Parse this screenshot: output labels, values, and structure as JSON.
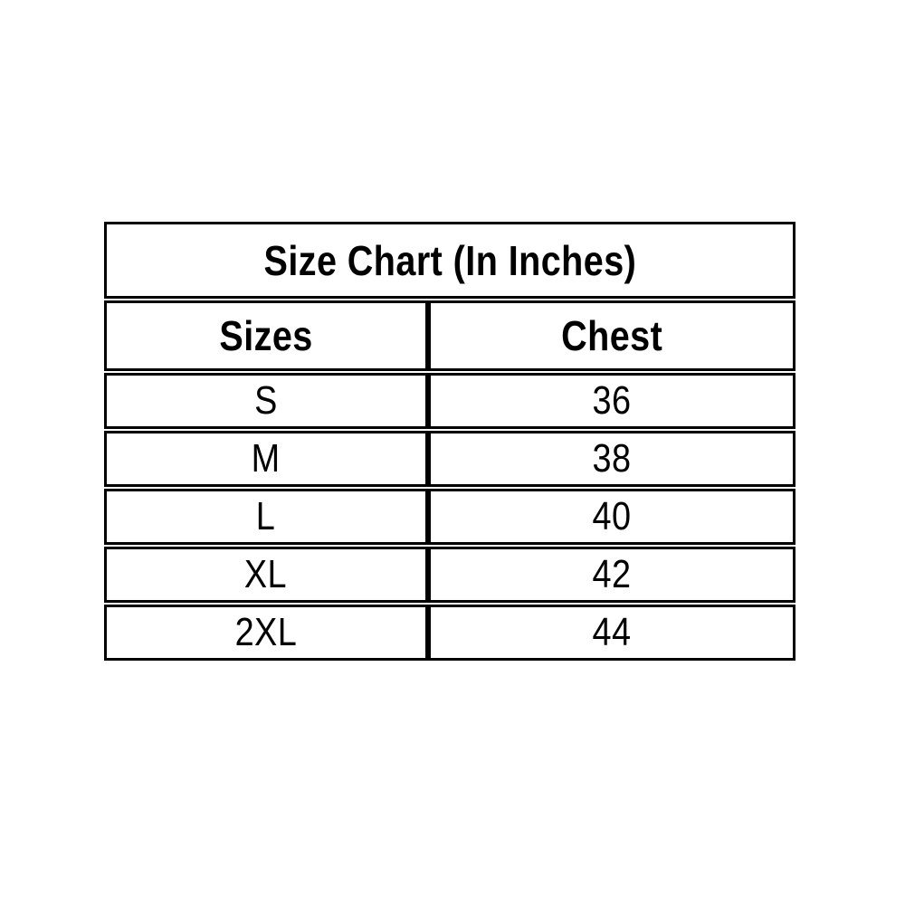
{
  "page": {
    "background": "#FFFFFF"
  },
  "colors": {
    "title_bg": "#92D050",
    "header_bg": "#FFFF00",
    "cell_bg": "#FFFFFF",
    "border": "#000000",
    "text": "#000000",
    "page_bg": "#FFFFFF"
  },
  "table": {
    "title": "Size Chart (In Inches)",
    "columns": [
      "Sizes",
      "Chest"
    ],
    "rows": [
      {
        "size": "S",
        "chest": "36"
      },
      {
        "size": "M",
        "chest": "38"
      },
      {
        "size": "L",
        "chest": "40"
      },
      {
        "size": "XL",
        "chest": "42"
      },
      {
        "size": "2XL",
        "chest": "44"
      }
    ]
  },
  "chart_data": {
    "type": "table",
    "title": "Size Chart (In Inches)",
    "columns": [
      "Sizes",
      "Chest"
    ],
    "rows": [
      [
        "S",
        36
      ],
      [
        "M",
        38
      ],
      [
        "L",
        40
      ],
      [
        "XL",
        42
      ],
      [
        "2XL",
        44
      ]
    ],
    "units": "inches",
    "layout": {
      "title_row_bg": "#92D050",
      "header_row_bg": "#FFFF00",
      "grid": "black box borders"
    }
  }
}
